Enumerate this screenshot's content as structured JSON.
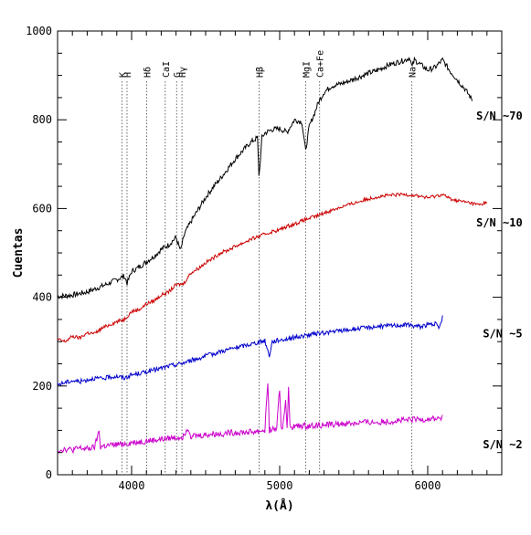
{
  "chart_data": {
    "type": "line",
    "xlabel": "λ(Å)",
    "ylabel": "Cuentas",
    "xlim": [
      3500,
      6500
    ],
    "ylim": [
      0,
      1000
    ],
    "x_ticks": [
      4000,
      5000,
      6000
    ],
    "x_tick_labels": [
      "4000",
      "5000",
      "6000"
    ],
    "y_ticks": [
      0,
      200,
      400,
      600,
      800,
      1000
    ],
    "y_tick_labels": [
      "0",
      "200",
      "400",
      "600",
      "800",
      "1000"
    ],
    "x_minor_step": 100,
    "y_minor_step": 50,
    "grid": false,
    "legend": "none",
    "spectral_lines": [
      {
        "label": "K",
        "x": 3934
      },
      {
        "label": "H",
        "x": 3969
      },
      {
        "label": "Hδ",
        "x": 4102
      },
      {
        "label": "CaI",
        "x": 4227
      },
      {
        "label": "G",
        "x": 4304
      },
      {
        "label": "Hγ",
        "x": 4340
      },
      {
        "label": "Hβ",
        "x": 4861
      },
      {
        "label": "MgI",
        "x": 5175
      },
      {
        "label": "Ca+Fe",
        "x": 5270
      },
      {
        "label": "Na",
        "x": 5893
      }
    ],
    "series": [
      {
        "name": "S/N ~70",
        "color": "#000000",
        "label_at": [
          6640,
          800
        ],
        "x": [
          3500,
          3600,
          3700,
          3800,
          3850,
          3900,
          3950,
          3970,
          4000,
          4050,
          4100,
          4150,
          4200,
          4250,
          4300,
          4330,
          4360,
          4400,
          4450,
          4500,
          4550,
          4600,
          4650,
          4700,
          4750,
          4800,
          4850,
          4861,
          4880,
          4900,
          4950,
          5000,
          5050,
          5100,
          5150,
          5175,
          5200,
          5230,
          5260,
          5300,
          5350,
          5400,
          5450,
          5500,
          5550,
          5600,
          5650,
          5700,
          5750,
          5800,
          5850,
          5880,
          5893,
          5910,
          5950,
          6000,
          6050,
          6100,
          6150,
          6200,
          6250,
          6300
        ],
        "y": [
          402,
          405,
          412,
          425,
          432,
          440,
          448,
          432,
          458,
          468,
          480,
          492,
          508,
          518,
          535,
          505,
          545,
          570,
          598,
          625,
          648,
          668,
          690,
          712,
          730,
          748,
          760,
          668,
          760,
          770,
          778,
          780,
          772,
          800,
          795,
          730,
          785,
          810,
          838,
          862,
          876,
          880,
          885,
          892,
          898,
          905,
          910,
          918,
          925,
          930,
          935,
          940,
          918,
          935,
          925,
          912,
          918,
          935,
          910,
          890,
          870,
          845
        ]
      },
      {
        "name": "S/N ~10",
        "color": "#cc0000",
        "label_at": [
          6640,
          560
        ],
        "x": [
          3500,
          3550,
          3600,
          3650,
          3700,
          3750,
          3800,
          3850,
          3900,
          3950,
          4000,
          4050,
          4100,
          4150,
          4200,
          4250,
          4300,
          4350,
          4400,
          4450,
          4500,
          4550,
          4600,
          4650,
          4700,
          4750,
          4800,
          4850,
          4900,
          4950,
          5000,
          5050,
          5100,
          5150,
          5200,
          5250,
          5300,
          5350,
          5400,
          5450,
          5500,
          5550,
          5600,
          5650,
          5700,
          5750,
          5800,
          5850,
          5900,
          5950,
          6000,
          6050,
          6100,
          6150,
          6200,
          6250,
          6300,
          6350,
          6400
        ],
        "y": [
          305,
          300,
          312,
          308,
          320,
          318,
          330,
          338,
          345,
          350,
          368,
          372,
          385,
          392,
          405,
          412,
          428,
          430,
          455,
          465,
          478,
          488,
          500,
          506,
          515,
          522,
          530,
          536,
          542,
          548,
          552,
          560,
          565,
          572,
          578,
          583,
          590,
          596,
          602,
          607,
          612,
          617,
          622,
          626,
          628,
          630,
          631,
          632,
          630,
          628,
          624,
          628,
          632,
          622,
          618,
          615,
          612,
          608,
          615
        ]
      },
      {
        "name": "S/N ~5",
        "color": "#0000cc",
        "label_at": [
          6640,
          310
        ],
        "x": [
          3500,
          3550,
          3600,
          3650,
          3700,
          3750,
          3800,
          3850,
          3900,
          3950,
          4000,
          4050,
          4100,
          4150,
          4200,
          4250,
          4300,
          4350,
          4400,
          4450,
          4500,
          4550,
          4600,
          4650,
          4700,
          4750,
          4800,
          4850,
          4900,
          4930,
          4950,
          5000,
          5050,
          5100,
          5150,
          5200,
          5250,
          5300,
          5350,
          5400,
          5450,
          5500,
          5550,
          5600,
          5650,
          5700,
          5750,
          5800,
          5850,
          5900,
          5950,
          6000,
          6050,
          6080,
          6100
        ],
        "y": [
          203,
          208,
          212,
          210,
          214,
          218,
          216,
          220,
          222,
          218,
          225,
          228,
          232,
          236,
          240,
          245,
          248,
          252,
          258,
          262,
          268,
          272,
          278,
          282,
          286,
          290,
          294,
          298,
          302,
          268,
          300,
          304,
          306,
          310,
          312,
          315,
          318,
          320,
          322,
          324,
          326,
          328,
          330,
          332,
          334,
          335,
          336,
          337,
          338,
          336,
          334,
          338,
          340,
          330,
          358
        ]
      },
      {
        "name": "S/N ~2",
        "color": "#cc00cc",
        "label_at": [
          6640,
          60
        ],
        "x": [
          3500,
          3550,
          3600,
          3650,
          3700,
          3750,
          3780,
          3790,
          3800,
          3850,
          3900,
          3950,
          4000,
          4050,
          4100,
          4150,
          4200,
          4250,
          4300,
          4350,
          4380,
          4400,
          4450,
          4500,
          4550,
          4600,
          4650,
          4700,
          4750,
          4800,
          4850,
          4900,
          4920,
          4930,
          4940,
          4950,
          4980,
          5000,
          5010,
          5020,
          5040,
          5050,
          5060,
          5070,
          5100,
          5150,
          5200,
          5250,
          5300,
          5350,
          5400,
          5450,
          5500,
          5550,
          5600,
          5650,
          5700,
          5750,
          5800,
          5850,
          5900,
          5950,
          6000,
          6050,
          6100
        ],
        "y": [
          55,
          58,
          56,
          60,
          58,
          62,
          98,
          62,
          64,
          66,
          68,
          70,
          72,
          74,
          76,
          78,
          80,
          82,
          84,
          86,
          108,
          88,
          88,
          90,
          92,
          92,
          94,
          95,
          96,
          96,
          98,
          100,
          210,
          100,
          102,
          102,
          104,
          196,
          104,
          106,
          170,
          106,
          192,
          108,
          108,
          110,
          110,
          112,
          112,
          114,
          114,
          116,
          116,
          118,
          118,
          118,
          120,
          120,
          122,
          122,
          124,
          124,
          126,
          126,
          128
        ]
      }
    ]
  }
}
